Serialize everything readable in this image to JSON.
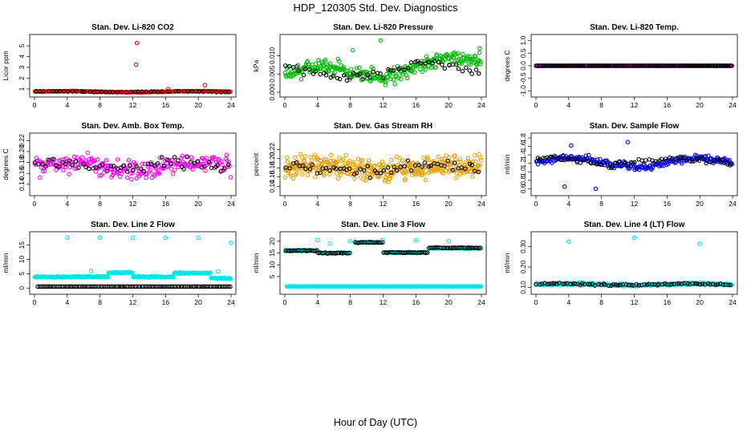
{
  "figure": {
    "title": "HDP_120305  Std. Dev. Diagnostics",
    "xlabel": "Hour of Day (UTC)"
  },
  "chart_data": [
    {
      "type": "scatter",
      "title": "Stan. Dev. Li-820 CO2",
      "ylabel": "Licor ppm",
      "xlim": [
        0,
        24
      ],
      "xticks": [
        0,
        4,
        8,
        12,
        16,
        20,
        24
      ],
      "ylim": [
        0.7,
        5.6
      ],
      "yticks": [
        1,
        2,
        3,
        4,
        5
      ],
      "series": [
        {
          "color": "#ff0000",
          "pattern": {
            "base": 0.75,
            "amp": 0.05,
            "noise": 0.05,
            "density": 2
          }
        },
        {
          "color": "#000000",
          "pattern": {
            "base": 0.75,
            "amp": 0.04,
            "noise": 0.04,
            "density": 0.5
          }
        }
      ],
      "outliers": [
        {
          "color": "#ff0000",
          "points": [
            [
              12.5,
              5.25
            ],
            [
              12.4,
              3.25
            ],
            [
              20.8,
              1.35
            ],
            [
              16.3,
              1.0
            ]
          ]
        }
      ]
    },
    {
      "type": "scatter",
      "title": "Stan. Dev. Li-820 Pressure",
      "ylabel": "kPa",
      "xlim": [
        0,
        24
      ],
      "xticks": [
        0,
        4,
        8,
        12,
        16,
        20,
        24
      ],
      "ylim": [
        0,
        0.0145
      ],
      "yticks": [
        0.0,
        0.005,
        0.01
      ],
      "ytick_labels": [
        "0.000",
        "0.005",
        "0.010"
      ],
      "series": [
        {
          "color": "#00bb00",
          "pattern": {
            "base": 0.0045,
            "amp": 0.002,
            "noise": 0.0035,
            "density": 3,
            "trend": 0.00015
          }
        },
        {
          "color": "#000000",
          "pattern": {
            "base": 0.0045,
            "amp": 0.0015,
            "noise": 0.0025,
            "density": 0.6,
            "trend": 0.0001
          }
        }
      ],
      "outliers": [
        {
          "color": "#00bb00",
          "points": [
            [
              11.7,
              0.0142
            ],
            [
              8.3,
              0.0115
            ],
            [
              23.8,
              0.012
            ]
          ]
        }
      ]
    },
    {
      "type": "scatter",
      "title": "Stan. Dev. Li-820 Temp.",
      "ylabel": "degrees C",
      "xlim": [
        0,
        24
      ],
      "xticks": [
        0,
        4,
        8,
        12,
        16,
        20,
        24
      ],
      "ylim": [
        -1.05,
        1.05
      ],
      "yticks": [
        -1.0,
        -0.5,
        0.0,
        0.5,
        1.0
      ],
      "ytick_labels": [
        "-1.0",
        "-0.5",
        "0.0",
        "0.5",
        "1.0"
      ],
      "series": [
        {
          "color": "#ff00ff",
          "pattern": {
            "base": 0.0,
            "amp": 0,
            "noise": 0,
            "density": 2
          }
        },
        {
          "color": "#000000",
          "pattern": {
            "base": 0.0,
            "amp": 0,
            "noise": 0,
            "density": 1.5
          }
        }
      ]
    },
    {
      "type": "scatter",
      "title": "Stan. Dev. Amb. Box Temp.",
      "ylabel": "degrees C",
      "xlim": [
        0,
        24
      ],
      "xticks": [
        0,
        4,
        8,
        12,
        16,
        20,
        24
      ],
      "ylim": [
        0.128,
        0.225
      ],
      "yticks": [
        0.14,
        0.16,
        0.18,
        0.2,
        0.22
      ],
      "ytick_labels": [
        "0.14",
        "0.16",
        "0.18",
        "0.20",
        "0.22"
      ],
      "series": [
        {
          "color": "#ff00ff",
          "pattern": {
            "base": 0.172,
            "amp": 0.008,
            "noise": 0.032,
            "density": 2.5
          }
        },
        {
          "color": "#000000",
          "pattern": {
            "base": 0.175,
            "amp": 0.006,
            "noise": 0.02,
            "density": 0.6
          }
        }
      ]
    },
    {
      "type": "scatter",
      "title": "Stan. Dev. Gas Stream RH",
      "ylabel": "percent",
      "xlim": [
        0,
        24
      ],
      "xticks": [
        0,
        4,
        8,
        12,
        16,
        20,
        24
      ],
      "ylim": [
        0.13,
        0.245
      ],
      "yticks": [
        0.14,
        0.16,
        0.18,
        0.2,
        0.22
      ],
      "ytick_labels": [
        "0.14",
        "0.16",
        "0.18",
        "0.20",
        "0.22"
      ],
      "series": [
        {
          "color": "#e8a000",
          "pattern": {
            "base": 0.18,
            "amp": 0.006,
            "noise": 0.04,
            "density": 4
          }
        },
        {
          "color": "#000000",
          "pattern": {
            "base": 0.18,
            "amp": 0.006,
            "noise": 0.025,
            "density": 0.6
          }
        }
      ]
    },
    {
      "type": "scatter",
      "title": "Stan. Dev. Sample Flow",
      "ylabel": "ml/min",
      "xlim": [
        0,
        24
      ],
      "xticks": [
        0,
        4,
        8,
        12,
        16,
        20,
        24
      ],
      "ylim": [
        0.55,
        1.8
      ],
      "yticks": [
        0.6,
        0.8,
        1.0,
        1.2,
        1.4,
        1.6,
        1.8
      ],
      "ytick_labels": [
        "0.6",
        "0.8",
        "1.0",
        "1.2",
        "1.4",
        "1.6",
        "1.8"
      ],
      "series": [
        {
          "color": "#0000dd",
          "pattern": {
            "base": 1.22,
            "amp": 0.1,
            "noise": 0.16,
            "density": 2.5
          }
        },
        {
          "color": "#000000",
          "pattern": {
            "base": 1.25,
            "amp": 0.08,
            "noise": 0.1,
            "density": 0.6
          }
        }
      ],
      "outliers": [
        {
          "color": "#0000dd",
          "points": [
            [
              7.3,
              0.6
            ],
            [
              3.5,
              0.65
            ],
            [
              4.3,
              1.62
            ],
            [
              11.2,
              1.7
            ]
          ]
        }
      ]
    },
    {
      "type": "scatter",
      "title": "Stan. Dev. Line 2 Flow",
      "ylabel": "ml/min",
      "xlim": [
        0,
        24
      ],
      "xticks": [
        0,
        4,
        8,
        12,
        16,
        20,
        24
      ],
      "ylim": [
        -0.5,
        18
      ],
      "yticks": [
        0,
        5,
        10,
        15
      ],
      "ytick_labels": [
        "0",
        "5",
        "10",
        "15"
      ],
      "series": [
        {
          "color": "#00e5e5",
          "segments": [
            [
              0,
              3.8,
              3.9
            ],
            [
              3.9,
              5.0,
              3.9
            ],
            [
              5.0,
              9.0,
              4.0
            ],
            [
              9.0,
              12.0,
              5.4
            ],
            [
              12.0,
              17.0,
              3.9
            ],
            [
              17.0,
              21.5,
              5.2
            ],
            [
              21.5,
              24.0,
              3.4
            ]
          ],
          "noise": 0.35,
          "density": 3
        },
        {
          "color": "#000000",
          "segments": [
            [
              0.3,
              24,
              0.5
            ]
          ],
          "noise": 0.0,
          "density": 1.2
        }
      ],
      "outliers": [
        {
          "color": "#00e5e5",
          "points": [
            [
              4.0,
              17.6
            ],
            [
              8.0,
              17.6
            ],
            [
              12.0,
              17.6
            ],
            [
              16.0,
              17.6
            ],
            [
              20.0,
              17.6
            ],
            [
              24.0,
              15.8
            ],
            [
              6.9,
              6.0
            ],
            [
              22.4,
              5.8
            ]
          ]
        }
      ]
    },
    {
      "type": "scatter",
      "title": "Stan. Dev. Line 3 Flow",
      "ylabel": "ml/min",
      "xlim": [
        0,
        24
      ],
      "xticks": [
        0,
        4,
        8,
        12,
        16,
        20,
        24
      ],
      "ylim": [
        -0.5,
        22
      ],
      "yticks": [
        5,
        10,
        15,
        20
      ],
      "ytick_labels": [
        "5",
        "10",
        "15",
        "20"
      ],
      "series": [
        {
          "color": "#00e5e5",
          "segments": [
            [
              0.2,
              24,
              0.8
            ]
          ],
          "noise": 0.1,
          "density": 3
        },
        {
          "color": "#00e5e5",
          "segments": [
            [
              0,
              4,
              16.0
            ],
            [
              4,
              8,
              15.0
            ],
            [
              8.5,
              12,
              19.5
            ],
            [
              12,
              17.5,
              15.2
            ],
            [
              17.5,
              24,
              17.0
            ]
          ],
          "noise": 0.4,
          "density": 2
        },
        {
          "color": "#000000",
          "segments": [
            [
              0,
              4,
              16.0
            ],
            [
              4,
              8,
              15.0
            ],
            [
              8.5,
              12,
              19.5
            ],
            [
              12,
              17.5,
              15.2
            ],
            [
              17.5,
              24,
              17.2
            ]
          ],
          "noise": 0.3,
          "density": 1.2
        }
      ],
      "outliers": [
        {
          "color": "#00e5e5",
          "points": [
            [
              4.0,
              20.5
            ],
            [
              5.5,
              19.0
            ],
            [
              8.0,
              20.0
            ],
            [
              12.0,
              20.5
            ],
            [
              16.0,
              20.5
            ],
            [
              20.0,
              20.0
            ]
          ]
        }
      ]
    },
    {
      "type": "scatter",
      "title": "Stan. Dev. Line 4 (LT) Flow",
      "ylabel": "ml/min",
      "xlim": [
        0,
        24
      ],
      "xticks": [
        0,
        4,
        8,
        12,
        16,
        20,
        24
      ],
      "ylim": [
        0.09,
        0.35
      ],
      "yticks": [
        0.1,
        0.2,
        0.3
      ],
      "ytick_labels": [
        "0.10",
        "0.20",
        "0.30"
      ],
      "series": [
        {
          "color": "#00e5e5",
          "pattern": {
            "base": 0.115,
            "amp": 0.004,
            "noise": 0.012,
            "density": 2.5
          }
        },
        {
          "color": "#000000",
          "pattern": {
            "base": 0.115,
            "amp": 0.003,
            "noise": 0.008,
            "density": 0.8
          }
        }
      ],
      "outliers": [
        {
          "color": "#00e5e5",
          "points": [
            [
              4.0,
              0.325
            ],
            [
              12.0,
              0.345
            ],
            [
              20.0,
              0.315
            ]
          ]
        }
      ]
    }
  ]
}
